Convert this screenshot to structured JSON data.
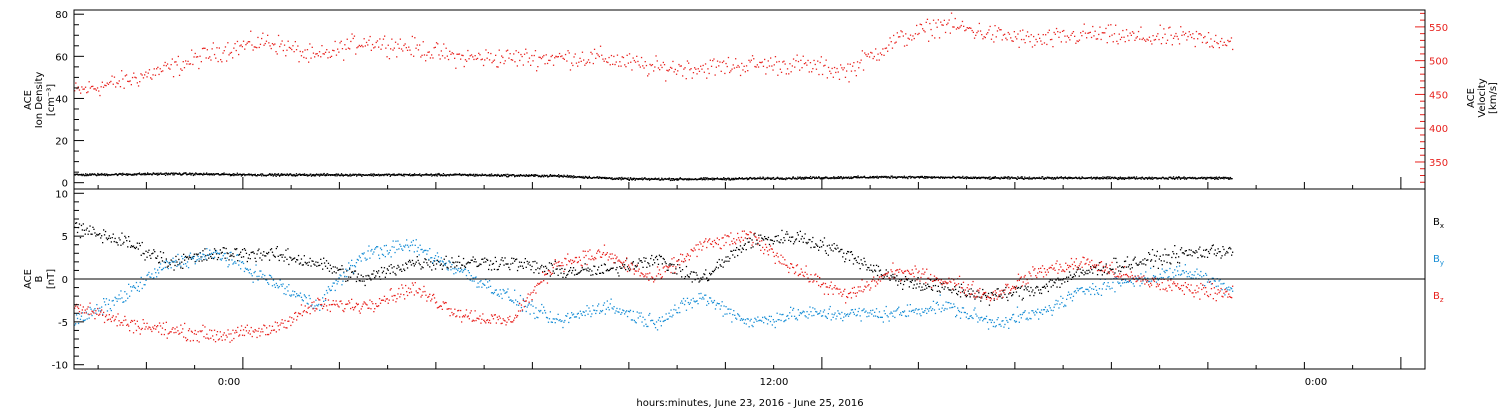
{
  "colors": {
    "black": "#000000",
    "red": "#e8221e",
    "blue": "#1a8fd6"
  },
  "xaxis": {
    "ticks": [
      "0:00",
      "12:00",
      "0:00"
    ],
    "label": "hours:minutes, June 23, 2016 - June 25, 2016"
  },
  "top_panel": {
    "left_label_lines": [
      "ACE",
      "Ion Density",
      "[cm⁻³]"
    ],
    "right_label_lines": [
      "ACE",
      "Velocity",
      "[km/s]"
    ]
  },
  "bottom_panel": {
    "label_lines": [
      "ACE",
      "B",
      "[nT]"
    ],
    "legend": [
      {
        "text": "B",
        "sub": "x",
        "color": "#000000"
      },
      {
        "text": "B",
        "sub": "y",
        "color": "#1a8fd6"
      },
      {
        "text": "B",
        "sub": "z",
        "color": "#e8221e"
      }
    ]
  },
  "chart_data": [
    {
      "type": "scatter",
      "panel": "top",
      "xlim_hours": [
        -3.5,
        24.5
      ],
      "y_left": {
        "lim": [
          -3,
          82
        ],
        "ticks": [
          0,
          20,
          40,
          60,
          80
        ]
      },
      "y_right": {
        "lim": [
          310,
          575
        ],
        "ticks": [
          350,
          400,
          450,
          500,
          550
        ]
      },
      "series": [
        {
          "axis": "right",
          "color": "#e8221e",
          "x_hours": [
            -3.5,
            -2.5,
            -1.5,
            -0.5,
            0.5,
            1.5,
            2.5,
            3.5,
            4.5,
            5.5,
            6.5,
            7.5,
            8.5,
            9.5,
            10.5,
            11.5,
            12.5,
            13.5,
            14.5,
            15.5,
            16.5,
            17.5,
            18.5,
            19.5,
            20.5
          ],
          "values": [
            455,
            470,
            490,
            515,
            530,
            505,
            530,
            520,
            505,
            505,
            505,
            505,
            490,
            490,
            495,
            495,
            485,
            530,
            555,
            540,
            530,
            540,
            535,
            535,
            530
          ]
        },
        {
          "axis": "left",
          "color": "#000000",
          "x_hours": [
            -3.5,
            -1.5,
            0.5,
            2.5,
            4.5,
            6.5,
            8.0,
            9.5,
            11.5,
            13.5,
            15.5,
            17.5,
            19.5,
            20.5
          ],
          "values": [
            4,
            4.5,
            4,
            4,
            4,
            3.5,
            2,
            2,
            2.5,
            3,
            2.5,
            2.5,
            2.5,
            2.5
          ]
        }
      ]
    },
    {
      "type": "scatter",
      "panel": "bottom",
      "xlim_hours": [
        -3.5,
        24.5
      ],
      "ylim": [
        -10.5,
        10.5
      ],
      "yticks": [
        -10,
        -5,
        0,
        5,
        10
      ],
      "zero_line": true,
      "series": [
        {
          "color": "#000000",
          "x_hours": [
            -3.5,
            -2.5,
            -1.5,
            -0.5,
            0.5,
            1.5,
            2.5,
            3.5,
            4.5,
            5.5,
            6.5,
            7.5,
            8.5,
            9.5,
            10.5,
            11.5,
            12.5,
            13.5,
            14.5,
            15.5,
            16.5,
            17.5,
            18.5,
            19.5,
            20.5
          ],
          "values": [
            6,
            4.5,
            2,
            3,
            3,
            2,
            0,
            2,
            2,
            2,
            1,
            1,
            2.5,
            0,
            4.5,
            5,
            3,
            0,
            -1,
            -2,
            -1,
            1,
            2,
            3,
            3.5
          ]
        },
        {
          "color": "#1a8fd6",
          "x_hours": [
            -3.5,
            -2.5,
            -1.5,
            -0.5,
            0.5,
            1.5,
            2.5,
            3.5,
            4.5,
            5.5,
            6.5,
            7.5,
            8.5,
            9.5,
            10.5,
            11.5,
            12.5,
            13.5,
            14.5,
            15.5,
            16.5,
            17.5,
            18.5,
            19.5,
            20.5
          ],
          "values": [
            -5,
            -2,
            2,
            3,
            0,
            -3,
            3,
            4,
            1,
            -2,
            -5,
            -3,
            -5,
            -2,
            -5,
            -4,
            -4,
            -4,
            -3,
            -5,
            -4,
            -1,
            0,
            1,
            -1
          ]
        },
        {
          "color": "#e8221e",
          "x_hours": [
            -3.5,
            -2.5,
            -1.5,
            -0.5,
            0.5,
            1.5,
            2.5,
            3.5,
            4.5,
            5.5,
            6.5,
            7.5,
            8.5,
            9.5,
            10.5,
            11.5,
            12.5,
            13.5,
            14.5,
            15.5,
            16.5,
            17.5,
            18.5,
            19.5,
            20.5
          ],
          "values": [
            -3,
            -5,
            -6,
            -6.5,
            -6,
            -3,
            -3,
            -1,
            -4,
            -5,
            2,
            3,
            0,
            4,
            5,
            1,
            -2,
            1,
            0,
            -2,
            1,
            2,
            0,
            -1,
            -1.5
          ]
        }
      ]
    }
  ]
}
